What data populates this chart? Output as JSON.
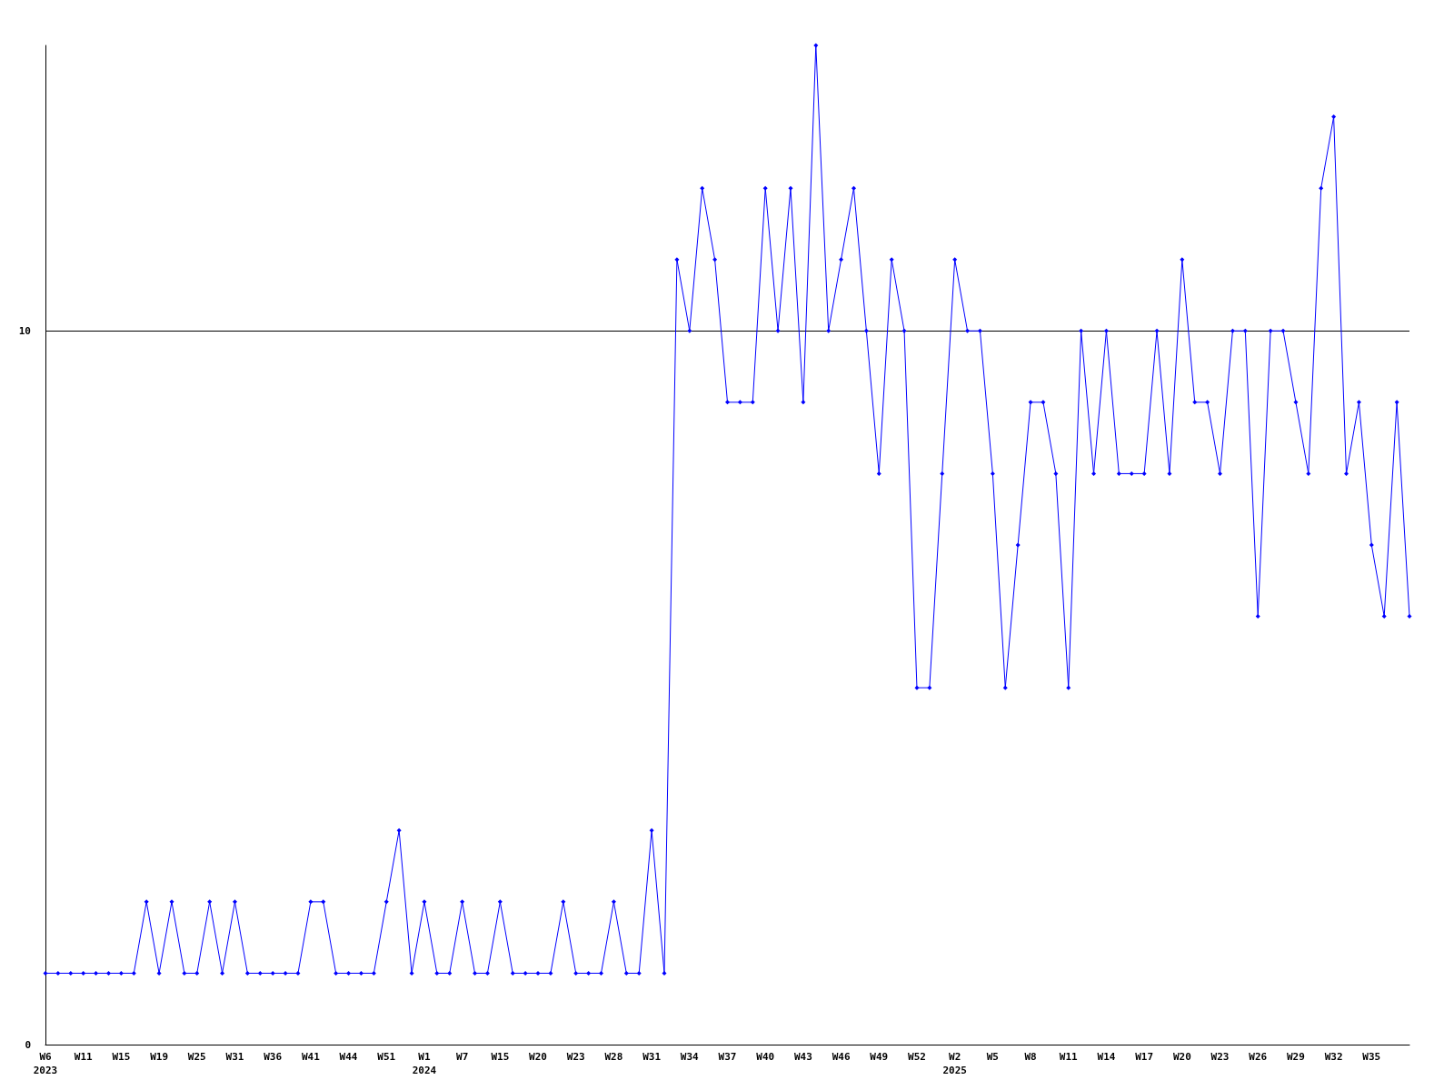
{
  "chart_data": {
    "type": "line",
    "categories": [
      "W6\n2023",
      null,
      null,
      "W11",
      null,
      null,
      "W15",
      null,
      null,
      "W19",
      null,
      null,
      "W25",
      null,
      null,
      "W31",
      null,
      null,
      "W36",
      null,
      null,
      "W41",
      null,
      null,
      "W44",
      null,
      null,
      "W51",
      null,
      null,
      "W1\n2024",
      null,
      null,
      "W7",
      null,
      null,
      "W15",
      null,
      null,
      "W20",
      null,
      null,
      "W23",
      null,
      null,
      "W28",
      null,
      null,
      "W31",
      null,
      null,
      "W34",
      null,
      null,
      "W37",
      null,
      null,
      "W40",
      null,
      null,
      "W43",
      null,
      null,
      "W46",
      null,
      null,
      "W49",
      null,
      null,
      "W52",
      null,
      null,
      "W2\n2025",
      null,
      null,
      "W5",
      null,
      null,
      "W8",
      null,
      null,
      "W11",
      null,
      null,
      "W14",
      null,
      null,
      "W17",
      null,
      null,
      "W20",
      null,
      null,
      "W23",
      null,
      null,
      "W26",
      null,
      null,
      "W29",
      null,
      null,
      "W32",
      null,
      null,
      "W35",
      null,
      null,
      null
    ],
    "series": [
      {
        "color": "#0000ff",
        "values": [
          1,
          1,
          1,
          1,
          1,
          1,
          1,
          1,
          2,
          1,
          2,
          1,
          1,
          2,
          1,
          2,
          1,
          1,
          1,
          1,
          1,
          2,
          2,
          1,
          1,
          1,
          1,
          2,
          3,
          1,
          2,
          1,
          1,
          2,
          1,
          1,
          2,
          1,
          1,
          1,
          1,
          2,
          1,
          1,
          1,
          2,
          1,
          1,
          3,
          1,
          11,
          10,
          12,
          11,
          9,
          9,
          9,
          12,
          10,
          12,
          9,
          14,
          10,
          11,
          12,
          10,
          8,
          11,
          10,
          5,
          5,
          8,
          11,
          10,
          10,
          8,
          5,
          7,
          9,
          9,
          8,
          5,
          10,
          8,
          10,
          8,
          8,
          8,
          10,
          8,
          11,
          9,
          9,
          8,
          10,
          10,
          6,
          10,
          10,
          9,
          8,
          12,
          13,
          8,
          9,
          7,
          6,
          9,
          6
        ]
      }
    ],
    "ylim": [
      0,
      14
    ],
    "yticks": [
      0,
      10
    ],
    "grid": "y",
    "marker": "diamond",
    "line_style": "solid"
  }
}
